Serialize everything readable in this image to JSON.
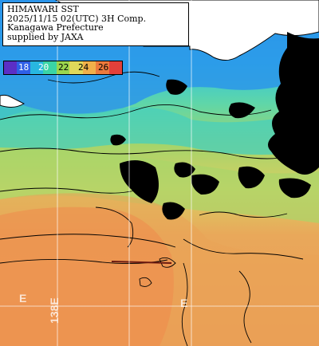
{
  "header": {
    "lines": [
      "HIMAWARI SST",
      "2025/11/15 02(UTC) 3H Comp.",
      "Kanagawa Prefecture",
      "supplied by JAXA"
    ]
  },
  "legend": {
    "colors": [
      "#5b2fc6",
      "#2f5fe6",
      "#28b7e0",
      "#3ad4a6",
      "#9ad64e",
      "#e0d85a",
      "#f0b04a",
      "#ec7a3c",
      "#e2403a"
    ],
    "labels": [
      "18",
      "20",
      "22",
      "24",
      "26"
    ]
  },
  "grid_labels": {
    "lon_partial_left": "E",
    "lon_138": "138E",
    "lon_partial_right": "E"
  },
  "colors": {
    "land": "#ffffff",
    "cloud": "#000000",
    "coast": "#000000",
    "grid": "#ffffff"
  }
}
